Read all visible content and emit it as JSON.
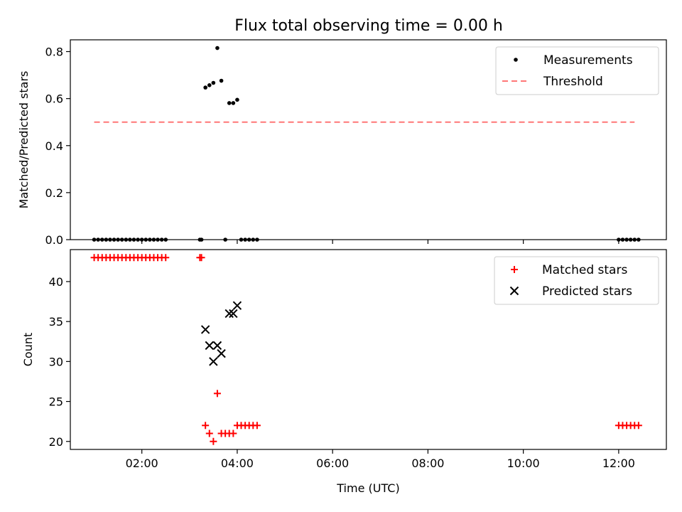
{
  "title": "Flux total observing time = 0.00 h",
  "chart_data": [
    {
      "type": "scatter",
      "ylabel": "Matched/Predicted stars",
      "xlim": [
        0.5,
        13.0
      ],
      "ylim": [
        0.0,
        0.85
      ],
      "yticks": [
        {
          "value": 0.0,
          "label": "0.0"
        },
        {
          "value": 0.2,
          "label": "0.2"
        },
        {
          "value": 0.4,
          "label": "0.4"
        },
        {
          "value": 0.6,
          "label": "0.6"
        },
        {
          "value": 0.8,
          "label": "0.8"
        }
      ],
      "legend_placement": "top-right",
      "series": [
        {
          "name": "Measurements",
          "marker": "dot",
          "color": "#000000",
          "x": [
            1.0,
            1.083,
            1.167,
            1.25,
            1.333,
            1.417,
            1.5,
            1.583,
            1.667,
            1.75,
            1.833,
            1.917,
            2.0,
            2.083,
            2.167,
            2.25,
            2.333,
            2.417,
            2.5,
            3.217,
            3.25,
            3.333,
            3.417,
            3.5,
            3.583,
            3.667,
            3.75,
            3.833,
            3.917,
            4.0,
            4.083,
            4.167,
            4.25,
            4.333,
            4.417,
            12.0,
            12.083,
            12.167,
            12.25,
            12.333,
            12.417
          ],
          "y": [
            0,
            0,
            0,
            0,
            0,
            0,
            0,
            0,
            0,
            0,
            0,
            0,
            0,
            0,
            0,
            0,
            0,
            0,
            0,
            0,
            0,
            0.647,
            0.657,
            0.667,
            0.815,
            0.676,
            0,
            0.581,
            0.581,
            0.595,
            0,
            0,
            0,
            0,
            0,
            0,
            0,
            0,
            0,
            0,
            0
          ]
        },
        {
          "name": "Threshold",
          "type": "line",
          "style": "dashed",
          "color": "#ff7777",
          "x": [
            1.0,
            12.333
          ],
          "y": [
            0.5,
            0.5
          ]
        }
      ]
    },
    {
      "type": "scatter",
      "xlabel": "Time (UTC)",
      "ylabel": "Count",
      "xlim": [
        0.5,
        13.0
      ],
      "ylim": [
        19.0,
        44.0
      ],
      "xticks": [
        {
          "value": 2,
          "label": "02:00"
        },
        {
          "value": 4,
          "label": "04:00"
        },
        {
          "value": 6,
          "label": "06:00"
        },
        {
          "value": 8,
          "label": "08:00"
        },
        {
          "value": 10,
          "label": "10:00"
        },
        {
          "value": 12,
          "label": "12:00"
        }
      ],
      "yticks": [
        {
          "value": 20,
          "label": "20"
        },
        {
          "value": 25,
          "label": "25"
        },
        {
          "value": 30,
          "label": "30"
        },
        {
          "value": 35,
          "label": "35"
        },
        {
          "value": 40,
          "label": "40"
        }
      ],
      "legend_placement": "top-right",
      "series": [
        {
          "name": "Matched stars",
          "marker": "plus",
          "color": "#ff0000",
          "x": [
            1.0,
            1.083,
            1.167,
            1.25,
            1.333,
            1.417,
            1.5,
            1.583,
            1.667,
            1.75,
            1.833,
            1.917,
            2.0,
            2.083,
            2.167,
            2.25,
            2.333,
            2.417,
            2.5,
            3.217,
            3.25,
            3.333,
            3.417,
            3.5,
            3.583,
            3.667,
            3.75,
            3.833,
            3.917,
            4.0,
            4.083,
            4.167,
            4.25,
            4.333,
            4.417,
            12.0,
            12.083,
            12.167,
            12.25,
            12.333,
            12.417
          ],
          "y": [
            43,
            43,
            43,
            43,
            43,
            43,
            43,
            43,
            43,
            43,
            43,
            43,
            43,
            43,
            43,
            43,
            43,
            43,
            43,
            43,
            43,
            22,
            21,
            20,
            26,
            21,
            21,
            21,
            21,
            22,
            22,
            22,
            22,
            22,
            22,
            22,
            22,
            22,
            22,
            22,
            22
          ]
        },
        {
          "name": "Predicted stars",
          "marker": "x",
          "color": "#000000",
          "x": [
            3.333,
            3.417,
            3.5,
            3.583,
            3.667,
            3.833,
            3.917,
            4.0
          ],
          "y": [
            34,
            32,
            30,
            32,
            31,
            36,
            36,
            37
          ]
        }
      ]
    }
  ]
}
